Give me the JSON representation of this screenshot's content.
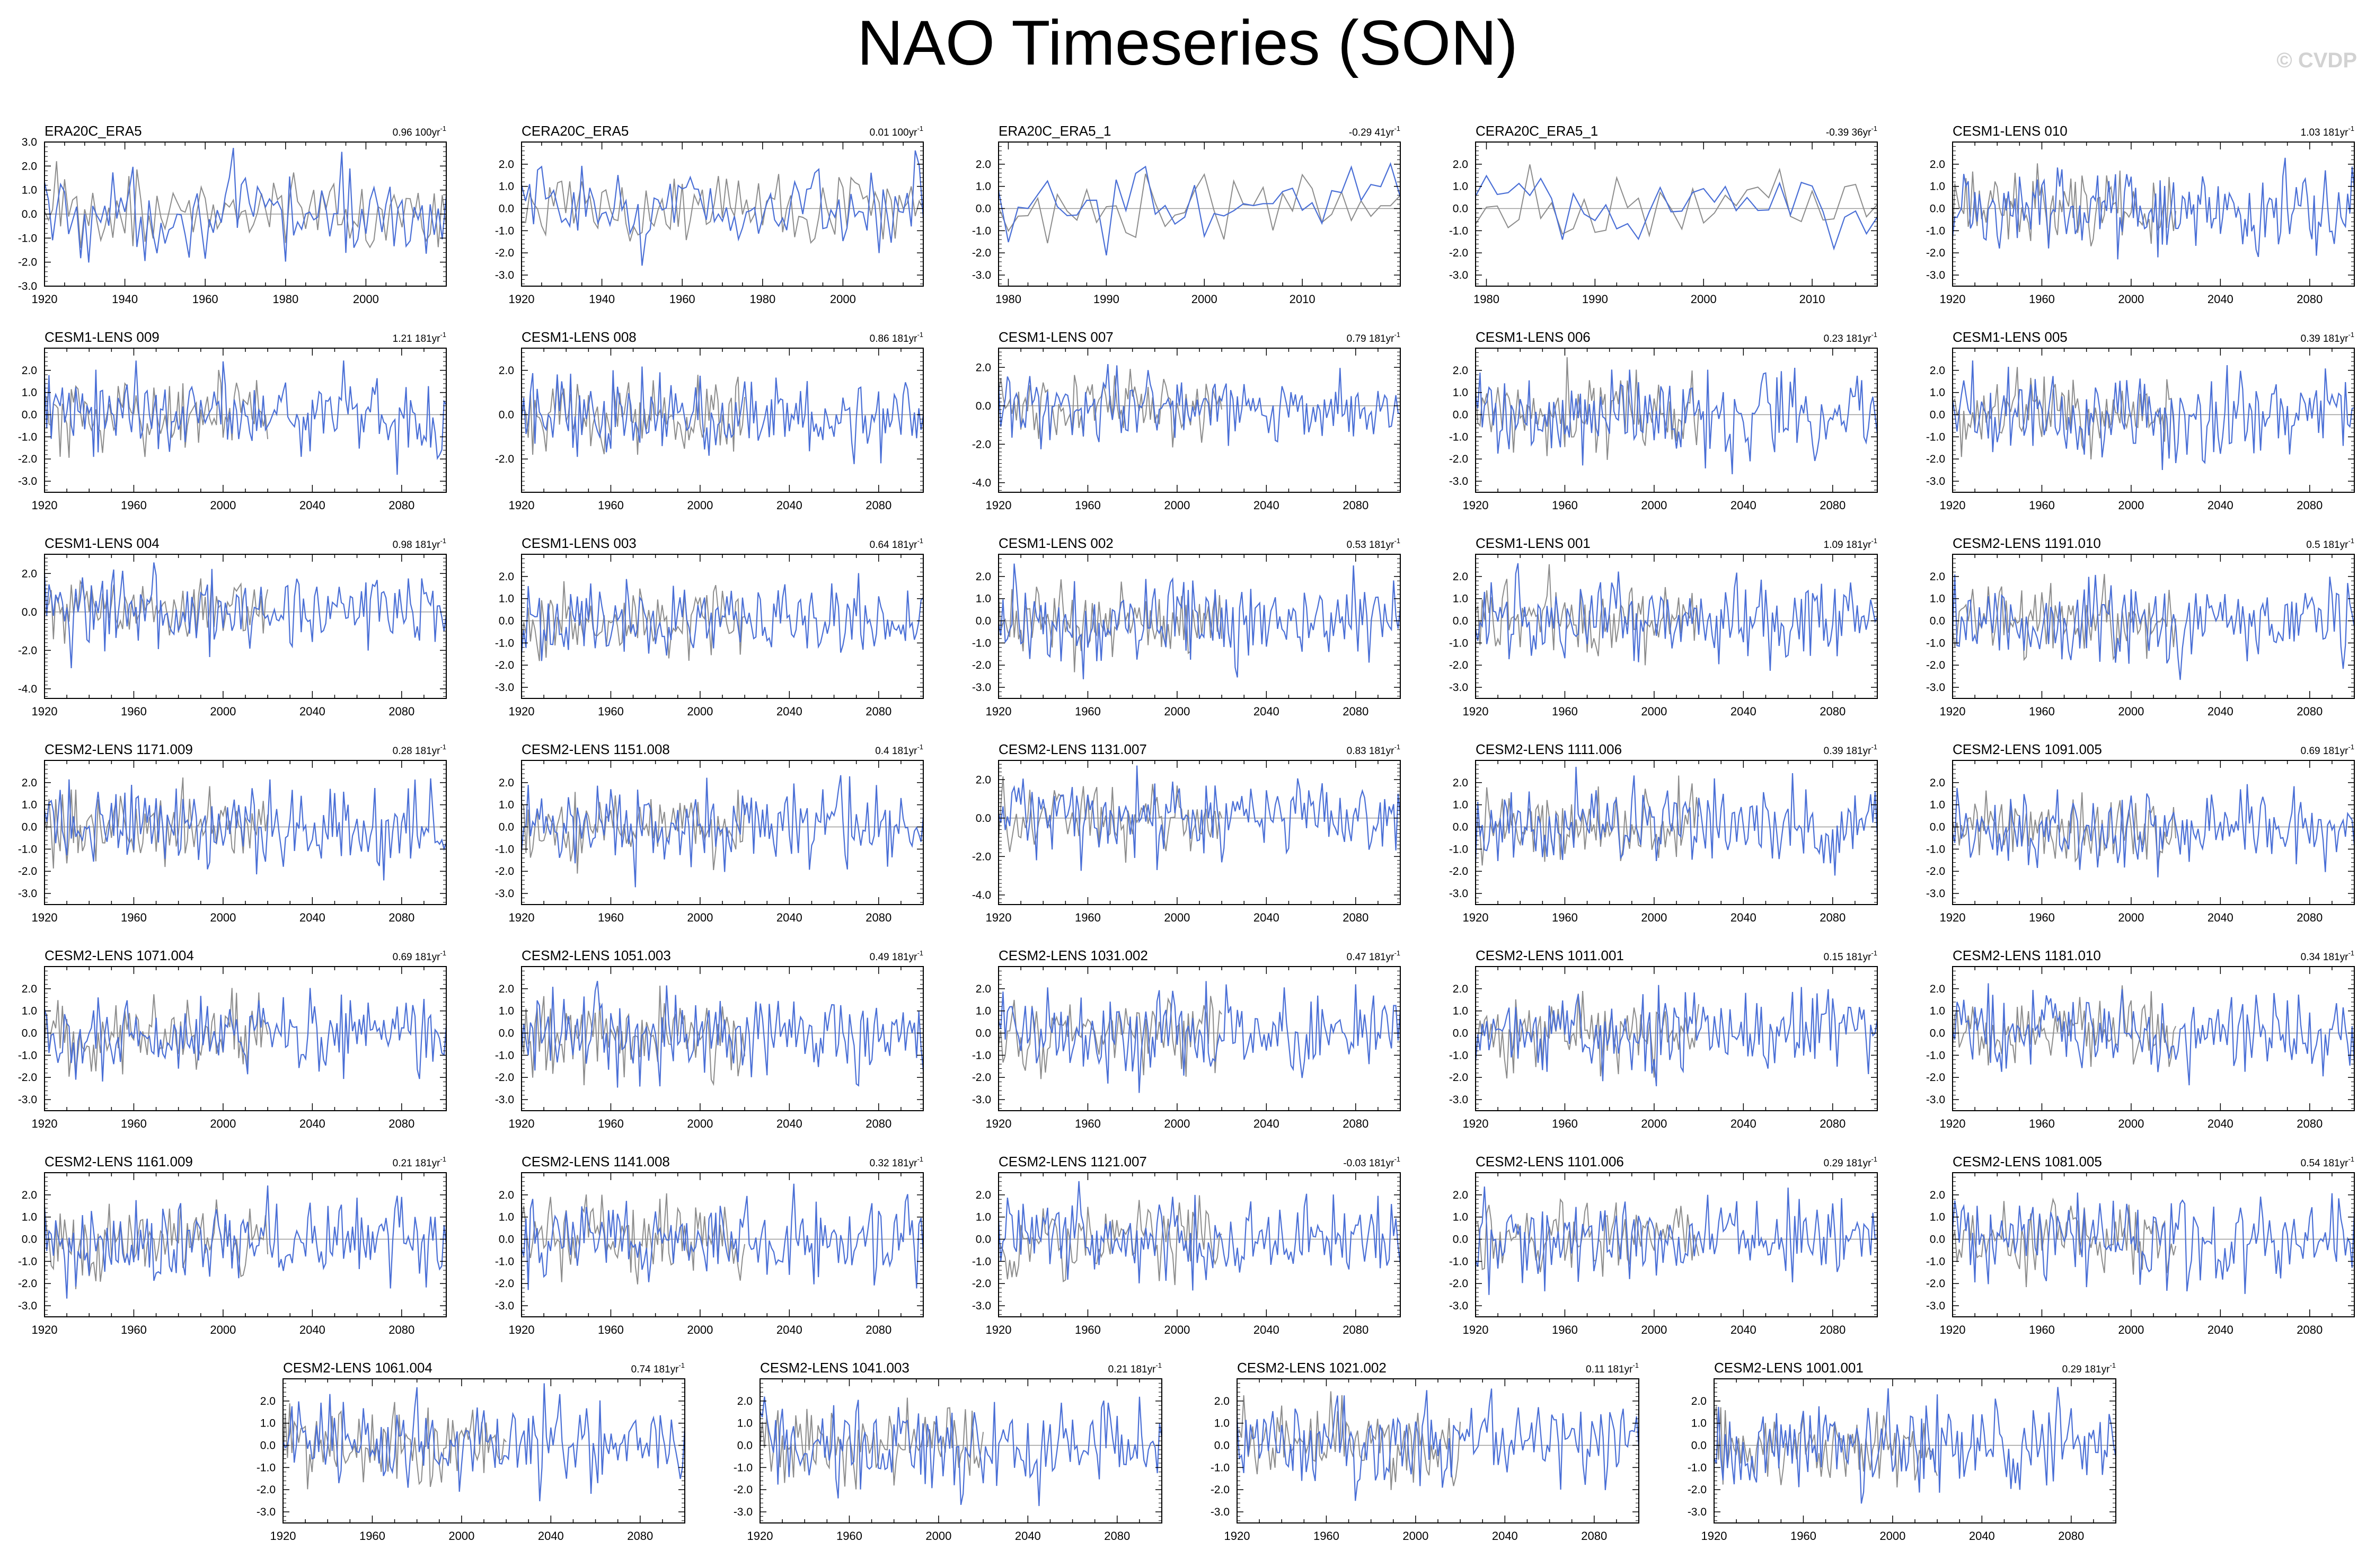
{
  "title": "NAO Timeseries (SON)",
  "watermark": "© CVDP",
  "colors": {
    "model_line": "#4a6fd6",
    "obs_line": "#8c8c8c",
    "zero_line": "#9a9a9a",
    "frame": "#000000"
  },
  "chart_data": [
    {
      "type": "line",
      "title": "ERA20C_ERA5",
      "trend": "0.96 100yr",
      "trend_unit_exp": "-1",
      "xlim": [
        1920,
        2020
      ],
      "ylim": [
        -3,
        3
      ],
      "xticks": [
        1920,
        1940,
        1960,
        1980,
        2000
      ],
      "yticks": [
        3,
        2,
        1,
        0,
        -1,
        -2,
        -3
      ],
      "ytick_labels": [
        "3.0",
        "2.0",
        "1.0",
        "0.0",
        "-1.0",
        "-2.0",
        "-3.0"
      ]
    },
    {
      "type": "line",
      "title": "CERA20C_ERA5",
      "trend": "0.01 100yr",
      "trend_unit_exp": "-1",
      "xlim": [
        1920,
        2020
      ],
      "ylim": [
        -3.5,
        3
      ],
      "xticks": [
        1920,
        1940,
        1960,
        1980,
        2000
      ],
      "yticks": [
        2,
        1,
        0,
        -1,
        -2,
        -3
      ],
      "ytick_labels": [
        "2.0",
        "1.0",
        "0.0",
        "-1.0",
        "-2.0",
        "-3.0"
      ]
    },
    {
      "type": "line",
      "title": "ERA20C_ERA5_1",
      "trend": "-0.29 41yr",
      "trend_unit_exp": "-1",
      "xlim": [
        1979,
        2020
      ],
      "ylim": [
        -3.5,
        3
      ],
      "xticks": [
        1980,
        1990,
        2000,
        2010
      ],
      "yticks": [
        2,
        1,
        0,
        -1,
        -2,
        -3
      ],
      "ytick_labels": [
        "2.0",
        "1.0",
        "0.0",
        "-1.0",
        "-2.0",
        "-3.0"
      ]
    },
    {
      "type": "line",
      "title": "CERA20C_ERA5_1",
      "trend": "-0.39 36yr",
      "trend_unit_exp": "-1",
      "xlim": [
        1979,
        2016
      ],
      "ylim": [
        -3.5,
        3
      ],
      "xticks": [
        1980,
        1990,
        2000,
        2010
      ],
      "yticks": [
        2,
        1,
        0,
        -1,
        -2,
        -3
      ],
      "ytick_labels": [
        "2.0",
        "1.0",
        "0.0",
        "-1.0",
        "-2.0",
        "-3.0"
      ]
    },
    {
      "type": "line",
      "title": "CESM1-LENS 010",
      "trend": "1.03 181yr",
      "trend_unit_exp": "-1",
      "xlim": [
        1920,
        2100
      ],
      "ylim": [
        -3.5,
        3
      ],
      "xticks": [
        1920,
        1960,
        2000,
        2040,
        2080
      ],
      "yticks": [
        2,
        1,
        0,
        -1,
        -2,
        -3
      ],
      "ytick_labels": [
        "2.0",
        "1.0",
        "0.0",
        "-1.0",
        "-2.0",
        "-3.0"
      ]
    },
    {
      "type": "line",
      "title": "CESM1-LENS 009",
      "trend": "1.21 181yr",
      "trend_unit_exp": "-1",
      "xlim": [
        1920,
        2100
      ],
      "ylim": [
        -3.5,
        3
      ],
      "xticks": [
        1920,
        1960,
        2000,
        2040,
        2080
      ],
      "yticks": [
        2,
        1,
        0,
        -1,
        -2,
        -3
      ],
      "ytick_labels": [
        "2.0",
        "1.0",
        "0.0",
        "-1.0",
        "-2.0",
        "-3.0"
      ]
    },
    {
      "type": "line",
      "title": "CESM1-LENS 008",
      "trend": "0.86 181yr",
      "trend_unit_exp": "-1",
      "xlim": [
        1920,
        2100
      ],
      "ylim": [
        -3.5,
        3
      ],
      "xticks": [
        1920,
        1960,
        2000,
        2040,
        2080
      ],
      "yticks": [
        2,
        0,
        -2
      ],
      "ytick_labels": [
        "2.0",
        "0.0",
        "-2.0"
      ]
    },
    {
      "type": "line",
      "title": "CESM1-LENS 007",
      "trend": "0.79 181yr",
      "trend_unit_exp": "-1",
      "xlim": [
        1920,
        2100
      ],
      "ylim": [
        -4.5,
        3
      ],
      "xticks": [
        1920,
        1960,
        2000,
        2040,
        2080
      ],
      "yticks": [
        2,
        0,
        -2,
        -4
      ],
      "ytick_labels": [
        "2.0",
        "0.0",
        "-2.0",
        "-4.0"
      ]
    },
    {
      "type": "line",
      "title": "CESM1-LENS 006",
      "trend": "0.23 181yr",
      "trend_unit_exp": "-1",
      "xlim": [
        1920,
        2100
      ],
      "ylim": [
        -3.5,
        3
      ],
      "xticks": [
        1920,
        1960,
        2000,
        2040,
        2080
      ],
      "yticks": [
        2,
        1,
        0,
        -1,
        -2,
        -3
      ],
      "ytick_labels": [
        "2.0",
        "1.0",
        "0.0",
        "-1.0",
        "-2.0",
        "-3.0"
      ]
    },
    {
      "type": "line",
      "title": "CESM1-LENS 005",
      "trend": "0.39 181yr",
      "trend_unit_exp": "-1",
      "xlim": [
        1920,
        2100
      ],
      "ylim": [
        -3.5,
        3
      ],
      "xticks": [
        1920,
        1960,
        2000,
        2040,
        2080
      ],
      "yticks": [
        2,
        1,
        0,
        -1,
        -2,
        -3
      ],
      "ytick_labels": [
        "2.0",
        "1.0",
        "0.0",
        "-1.0",
        "-2.0",
        "-3.0"
      ]
    },
    {
      "type": "line",
      "title": "CESM1-LENS 004",
      "trend": "0.98 181yr",
      "trend_unit_exp": "-1",
      "xlim": [
        1920,
        2100
      ],
      "ylim": [
        -4.5,
        3
      ],
      "xticks": [
        1920,
        1960,
        2000,
        2040,
        2080
      ],
      "yticks": [
        2,
        0,
        -2,
        -4
      ],
      "ytick_labels": [
        "2.0",
        "0.0",
        "-2.0",
        "-4.0"
      ]
    },
    {
      "type": "line",
      "title": "CESM1-LENS 003",
      "trend": "0.64 181yr",
      "trend_unit_exp": "-1",
      "xlim": [
        1920,
        2100
      ],
      "ylim": [
        -3.5,
        3
      ],
      "xticks": [
        1920,
        1960,
        2000,
        2040,
        2080
      ],
      "yticks": [
        2,
        1,
        0,
        -1,
        -2,
        -3
      ],
      "ytick_labels": [
        "2.0",
        "1.0",
        "0.0",
        "-1.0",
        "-2.0",
        "-3.0"
      ]
    },
    {
      "type": "line",
      "title": "CESM1-LENS 002",
      "trend": "0.53 181yr",
      "trend_unit_exp": "-1",
      "xlim": [
        1920,
        2100
      ],
      "ylim": [
        -3.5,
        3
      ],
      "xticks": [
        1920,
        1960,
        2000,
        2040,
        2080
      ],
      "yticks": [
        2,
        1,
        0,
        -1,
        -2,
        -3
      ],
      "ytick_labels": [
        "2.0",
        "1.0",
        "0.0",
        "-1.0",
        "-2.0",
        "-3.0"
      ]
    },
    {
      "type": "line",
      "title": "CESM1-LENS 001",
      "trend": "1.09 181yr",
      "trend_unit_exp": "-1",
      "xlim": [
        1920,
        2100
      ],
      "ylim": [
        -3.5,
        3
      ],
      "xticks": [
        1920,
        1960,
        2000,
        2040,
        2080
      ],
      "yticks": [
        2,
        1,
        0,
        -1,
        -2,
        -3
      ],
      "ytick_labels": [
        "2.0",
        "1.0",
        "0.0",
        "-1.0",
        "-2.0",
        "-3.0"
      ]
    },
    {
      "type": "line",
      "title": "CESM2-LENS 1191.010",
      "trend": "0.5 181yr",
      "trend_unit_exp": "-1",
      "xlim": [
        1920,
        2100
      ],
      "ylim": [
        -3.5,
        3
      ],
      "xticks": [
        1920,
        1960,
        2000,
        2040,
        2080
      ],
      "yticks": [
        2,
        1,
        0,
        -1,
        -2,
        -3
      ],
      "ytick_labels": [
        "2.0",
        "1.0",
        "0.0",
        "-1.0",
        "-2.0",
        "-3.0"
      ]
    },
    {
      "type": "line",
      "title": "CESM2-LENS 1171.009",
      "trend": "0.28 181yr",
      "trend_unit_exp": "-1",
      "xlim": [
        1920,
        2100
      ],
      "ylim": [
        -3.5,
        3
      ],
      "xticks": [
        1920,
        1960,
        2000,
        2040,
        2080
      ],
      "yticks": [
        2,
        1,
        0,
        -1,
        -2,
        -3
      ],
      "ytick_labels": [
        "2.0",
        "1.0",
        "0.0",
        "-1.0",
        "-2.0",
        "-3.0"
      ]
    },
    {
      "type": "line",
      "title": "CESM2-LENS 1151.008",
      "trend": "0.4 181yr",
      "trend_unit_exp": "-1",
      "xlim": [
        1920,
        2100
      ],
      "ylim": [
        -3.5,
        3
      ],
      "xticks": [
        1920,
        1960,
        2000,
        2040,
        2080
      ],
      "yticks": [
        2,
        1,
        0,
        -1,
        -2,
        -3
      ],
      "ytick_labels": [
        "2.0",
        "1.0",
        "0.0",
        "-1.0",
        "-2.0",
        "-3.0"
      ]
    },
    {
      "type": "line",
      "title": "CESM2-LENS 1131.007",
      "trend": "0.83 181yr",
      "trend_unit_exp": "-1",
      "xlim": [
        1920,
        2100
      ],
      "ylim": [
        -4.5,
        3
      ],
      "xticks": [
        1920,
        1960,
        2000,
        2040,
        2080
      ],
      "yticks": [
        2,
        0,
        -2,
        -4
      ],
      "ytick_labels": [
        "2.0",
        "0.0",
        "-2.0",
        "-4.0"
      ]
    },
    {
      "type": "line",
      "title": "CESM2-LENS 1111.006",
      "trend": "0.39 181yr",
      "trend_unit_exp": "-1",
      "xlim": [
        1920,
        2100
      ],
      "ylim": [
        -3.5,
        3
      ],
      "xticks": [
        1920,
        1960,
        2000,
        2040,
        2080
      ],
      "yticks": [
        2,
        1,
        0,
        -1,
        -2,
        -3
      ],
      "ytick_labels": [
        "2.0",
        "1.0",
        "0.0",
        "-1.0",
        "-2.0",
        "-3.0"
      ]
    },
    {
      "type": "line",
      "title": "CESM2-LENS 1091.005",
      "trend": "0.69 181yr",
      "trend_unit_exp": "-1",
      "xlim": [
        1920,
        2100
      ],
      "ylim": [
        -3.5,
        3
      ],
      "xticks": [
        1920,
        1960,
        2000,
        2040,
        2080
      ],
      "yticks": [
        2,
        1,
        0,
        -1,
        -2,
        -3
      ],
      "ytick_labels": [
        "2.0",
        "1.0",
        "0.0",
        "-1.0",
        "-2.0",
        "-3.0"
      ]
    },
    {
      "type": "line",
      "title": "CESM2-LENS 1071.004",
      "trend": "0.69 181yr",
      "trend_unit_exp": "-1",
      "xlim": [
        1920,
        2100
      ],
      "ylim": [
        -3.5,
        3
      ],
      "xticks": [
        1920,
        1960,
        2000,
        2040,
        2080
      ],
      "yticks": [
        2,
        1,
        0,
        -1,
        -2,
        -3
      ],
      "ytick_labels": [
        "2.0",
        "1.0",
        "0.0",
        "-1.0",
        "-2.0",
        "-3.0"
      ]
    },
    {
      "type": "line",
      "title": "CESM2-LENS 1051.003",
      "trend": "0.49 181yr",
      "trend_unit_exp": "-1",
      "xlim": [
        1920,
        2100
      ],
      "ylim": [
        -3.5,
        3
      ],
      "xticks": [
        1920,
        1960,
        2000,
        2040,
        2080
      ],
      "yticks": [
        2,
        1,
        0,
        -1,
        -2,
        -3
      ],
      "ytick_labels": [
        "2.0",
        "1.0",
        "0.0",
        "-1.0",
        "-2.0",
        "-3.0"
      ]
    },
    {
      "type": "line",
      "title": "CESM2-LENS 1031.002",
      "trend": "0.47 181yr",
      "trend_unit_exp": "-1",
      "xlim": [
        1920,
        2100
      ],
      "ylim": [
        -3.5,
        3
      ],
      "xticks": [
        1920,
        1960,
        2000,
        2040,
        2080
      ],
      "yticks": [
        2,
        1,
        0,
        -1,
        -2,
        -3
      ],
      "ytick_labels": [
        "2.0",
        "1.0",
        "0.0",
        "-1.0",
        "-2.0",
        "-3.0"
      ]
    },
    {
      "type": "line",
      "title": "CESM2-LENS 1011.001",
      "trend": "0.15 181yr",
      "trend_unit_exp": "-1",
      "xlim": [
        1920,
        2100
      ],
      "ylim": [
        -3.5,
        3
      ],
      "xticks": [
        1920,
        1960,
        2000,
        2040,
        2080
      ],
      "yticks": [
        2,
        1,
        0,
        -1,
        -2,
        -3
      ],
      "ytick_labels": [
        "2.0",
        "1.0",
        "0.0",
        "-1.0",
        "-2.0",
        "-3.0"
      ]
    },
    {
      "type": "line",
      "title": "CESM2-LENS 1181.010",
      "trend": "0.34 181yr",
      "trend_unit_exp": "-1",
      "xlim": [
        1920,
        2100
      ],
      "ylim": [
        -3.5,
        3
      ],
      "xticks": [
        1920,
        1960,
        2000,
        2040,
        2080
      ],
      "yticks": [
        2,
        1,
        0,
        -1,
        -2,
        -3
      ],
      "ytick_labels": [
        "2.0",
        "1.0",
        "0.0",
        "-1.0",
        "-2.0",
        "-3.0"
      ]
    },
    {
      "type": "line",
      "title": "CESM2-LENS 1161.009",
      "trend": "0.21 181yr",
      "trend_unit_exp": "-1",
      "xlim": [
        1920,
        2100
      ],
      "ylim": [
        -3.5,
        3
      ],
      "xticks": [
        1920,
        1960,
        2000,
        2040,
        2080
      ],
      "yticks": [
        2,
        1,
        0,
        -1,
        -2,
        -3
      ],
      "ytick_labels": [
        "2.0",
        "1.0",
        "0.0",
        "-1.0",
        "-2.0",
        "-3.0"
      ]
    },
    {
      "type": "line",
      "title": "CESM2-LENS 1141.008",
      "trend": "0.32 181yr",
      "trend_unit_exp": "-1",
      "xlim": [
        1920,
        2100
      ],
      "ylim": [
        -3.5,
        3
      ],
      "xticks": [
        1920,
        1960,
        2000,
        2040,
        2080
      ],
      "yticks": [
        2,
        1,
        0,
        -1,
        -2,
        -3
      ],
      "ytick_labels": [
        "2.0",
        "1.0",
        "0.0",
        "-1.0",
        "-2.0",
        "-3.0"
      ]
    },
    {
      "type": "line",
      "title": "CESM2-LENS 1121.007",
      "trend": "-0.03 181yr",
      "trend_unit_exp": "-1",
      "xlim": [
        1920,
        2100
      ],
      "ylim": [
        -3.5,
        3
      ],
      "xticks": [
        1920,
        1960,
        2000,
        2040,
        2080
      ],
      "yticks": [
        2,
        1,
        0,
        -1,
        -2,
        -3
      ],
      "ytick_labels": [
        "2.0",
        "1.0",
        "0.0",
        "-1.0",
        "-2.0",
        "-3.0"
      ]
    },
    {
      "type": "line",
      "title": "CESM2-LENS 1101.006",
      "trend": "0.29 181yr",
      "trend_unit_exp": "-1",
      "xlim": [
        1920,
        2100
      ],
      "ylim": [
        -3.5,
        3
      ],
      "xticks": [
        1920,
        1960,
        2000,
        2040,
        2080
      ],
      "yticks": [
        2,
        1,
        0,
        -1,
        -2,
        -3
      ],
      "ytick_labels": [
        "2.0",
        "1.0",
        "0.0",
        "-1.0",
        "-2.0",
        "-3.0"
      ]
    },
    {
      "type": "line",
      "title": "CESM2-LENS 1081.005",
      "trend": "0.54 181yr",
      "trend_unit_exp": "-1",
      "xlim": [
        1920,
        2100
      ],
      "ylim": [
        -3.5,
        3
      ],
      "xticks": [
        1920,
        1960,
        2000,
        2040,
        2080
      ],
      "yticks": [
        2,
        1,
        0,
        -1,
        -2,
        -3
      ],
      "ytick_labels": [
        "2.0",
        "1.0",
        "0.0",
        "-1.0",
        "-2.0",
        "-3.0"
      ]
    },
    {
      "type": "line",
      "title": "CESM2-LENS 1061.004",
      "trend": "0.74 181yr",
      "trend_unit_exp": "-1",
      "xlim": [
        1920,
        2100
      ],
      "ylim": [
        -3.5,
        3
      ],
      "xticks": [
        1920,
        1960,
        2000,
        2040,
        2080
      ],
      "yticks": [
        2,
        1,
        0,
        -1,
        -2,
        -3
      ],
      "ytick_labels": [
        "2.0",
        "1.0",
        "0.0",
        "-1.0",
        "-2.0",
        "-3.0"
      ]
    },
    {
      "type": "line",
      "title": "CESM2-LENS 1041.003",
      "trend": "0.21 181yr",
      "trend_unit_exp": "-1",
      "xlim": [
        1920,
        2100
      ],
      "ylim": [
        -3.5,
        3
      ],
      "xticks": [
        1920,
        1960,
        2000,
        2040,
        2080
      ],
      "yticks": [
        2,
        1,
        0,
        -1,
        -2,
        -3
      ],
      "ytick_labels": [
        "2.0",
        "1.0",
        "0.0",
        "-1.0",
        "-2.0",
        "-3.0"
      ]
    },
    {
      "type": "line",
      "title": "CESM2-LENS 1021.002",
      "trend": "0.11 181yr",
      "trend_unit_exp": "-1",
      "xlim": [
        1920,
        2100
      ],
      "ylim": [
        -3.5,
        3
      ],
      "xticks": [
        1920,
        1960,
        2000,
        2040,
        2080
      ],
      "yticks": [
        2,
        1,
        0,
        -1,
        -2,
        -3
      ],
      "ytick_labels": [
        "2.0",
        "1.0",
        "0.0",
        "-1.0",
        "-2.0",
        "-3.0"
      ]
    },
    {
      "type": "line",
      "title": "CESM2-LENS 1001.001",
      "trend": "0.29 181yr",
      "trend_unit_exp": "-1",
      "xlim": [
        1920,
        2100
      ],
      "ylim": [
        -3.5,
        3
      ],
      "xticks": [
        1920,
        1960,
        2000,
        2040,
        2080
      ],
      "yticks": [
        2,
        1,
        0,
        -1,
        -2,
        -3
      ],
      "ytick_labels": [
        "2.0",
        "1.0",
        "0.0",
        "-1.0",
        "-2.0",
        "-3.0"
      ]
    }
  ]
}
